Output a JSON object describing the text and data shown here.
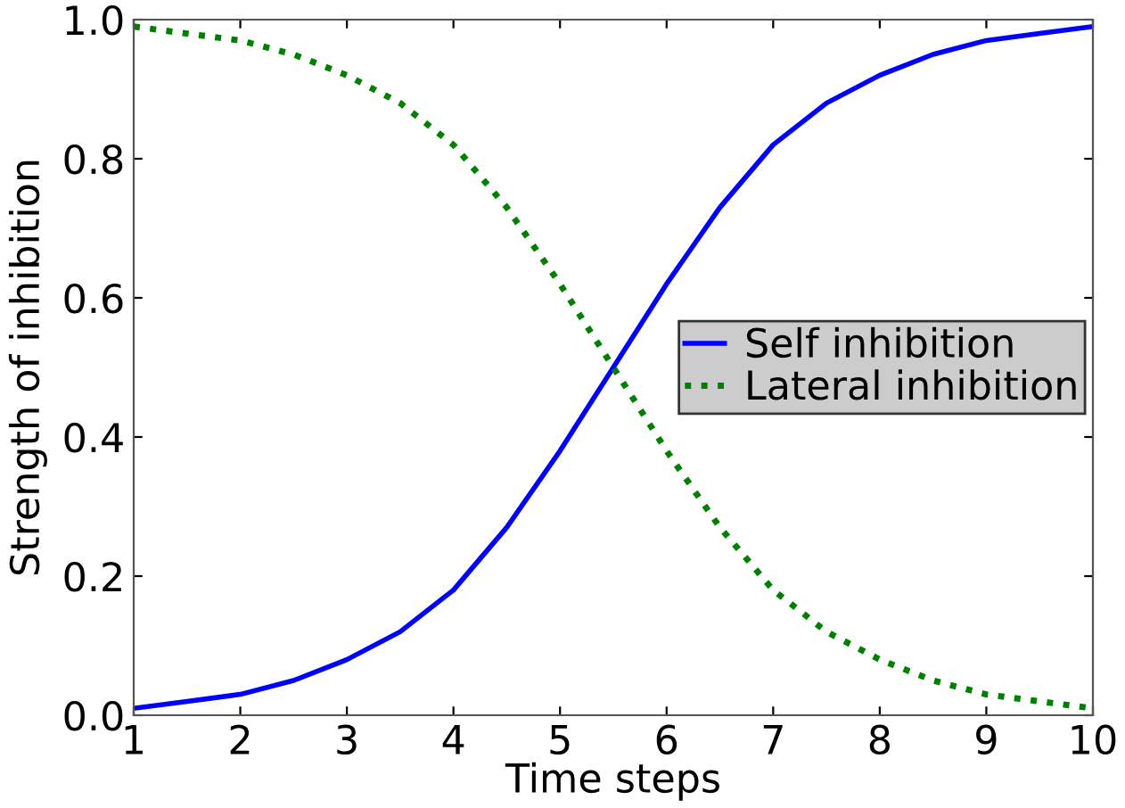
{
  "chart_data": {
    "type": "line",
    "xlabel": "Time steps",
    "ylabel": "Strength of inhibition",
    "x": [
      1,
      1.5,
      2,
      2.5,
      3,
      3.5,
      4,
      4.5,
      5,
      5.5,
      6,
      6.5,
      7,
      7.5,
      8,
      8.5,
      9,
      9.5,
      10
    ],
    "series": [
      {
        "name": "Self inhibition",
        "color": "#0000ff",
        "line_style": "solid",
        "values": [
          0.01,
          0.02,
          0.03,
          0.05,
          0.08,
          0.12,
          0.18,
          0.27,
          0.38,
          0.5,
          0.62,
          0.73,
          0.82,
          0.88,
          0.92,
          0.95,
          0.97,
          0.98,
          0.99
        ]
      },
      {
        "name": "Lateral inhibition",
        "color": "#008000",
        "line_style": "dotted",
        "values": [
          0.99,
          0.98,
          0.97,
          0.95,
          0.92,
          0.88,
          0.82,
          0.73,
          0.62,
          0.5,
          0.38,
          0.27,
          0.18,
          0.12,
          0.08,
          0.05,
          0.03,
          0.02,
          0.01
        ]
      }
    ],
    "xlim": [
      1,
      10
    ],
    "xticks": [
      1,
      2,
      3,
      4,
      5,
      6,
      7,
      8,
      9,
      10
    ],
    "ylim": [
      0,
      1
    ],
    "yticks": [
      {
        "value": 0,
        "label": "0.0"
      },
      {
        "value": 0.2,
        "label": "0.2"
      },
      {
        "value": 0.4,
        "label": "0.4"
      },
      {
        "value": 0.6,
        "label": "0.6"
      },
      {
        "value": 0.8,
        "label": "0.8"
      },
      {
        "value": 1,
        "label": "1.0"
      }
    ],
    "grid": false,
    "legend": "right",
    "marker": "none"
  }
}
